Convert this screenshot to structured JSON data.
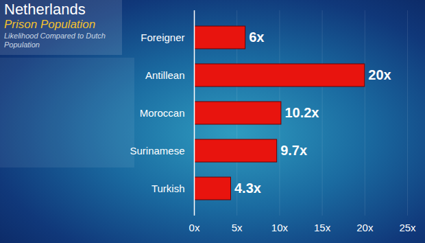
{
  "chart_data": {
    "type": "bar",
    "title": "Netherlands",
    "subtitle": "Prison Population",
    "annotations": [
      "Likelihood Compared to Dutch Population"
    ],
    "orientation": "horizontal",
    "categories": [
      "Foreigner",
      "Antillean",
      "Moroccan",
      "Surinamese",
      "Turkish"
    ],
    "values": [
      6,
      20,
      10.2,
      9.7,
      4.3
    ],
    "value_labels": [
      "6x",
      "20x",
      "10.2x",
      "9.7x",
      "4.3x"
    ],
    "data_labels": true,
    "color": "#e8140e",
    "xlim": [
      0,
      25
    ],
    "xticks": [
      {
        "value": 0,
        "label": "0x"
      },
      {
        "value": 5,
        "label": "5x"
      },
      {
        "value": 10,
        "label": "10x"
      },
      {
        "value": 15,
        "label": "15x"
      },
      {
        "value": 20,
        "label": "20x"
      },
      {
        "value": 25,
        "label": "25x"
      }
    ],
    "grid": true
  }
}
